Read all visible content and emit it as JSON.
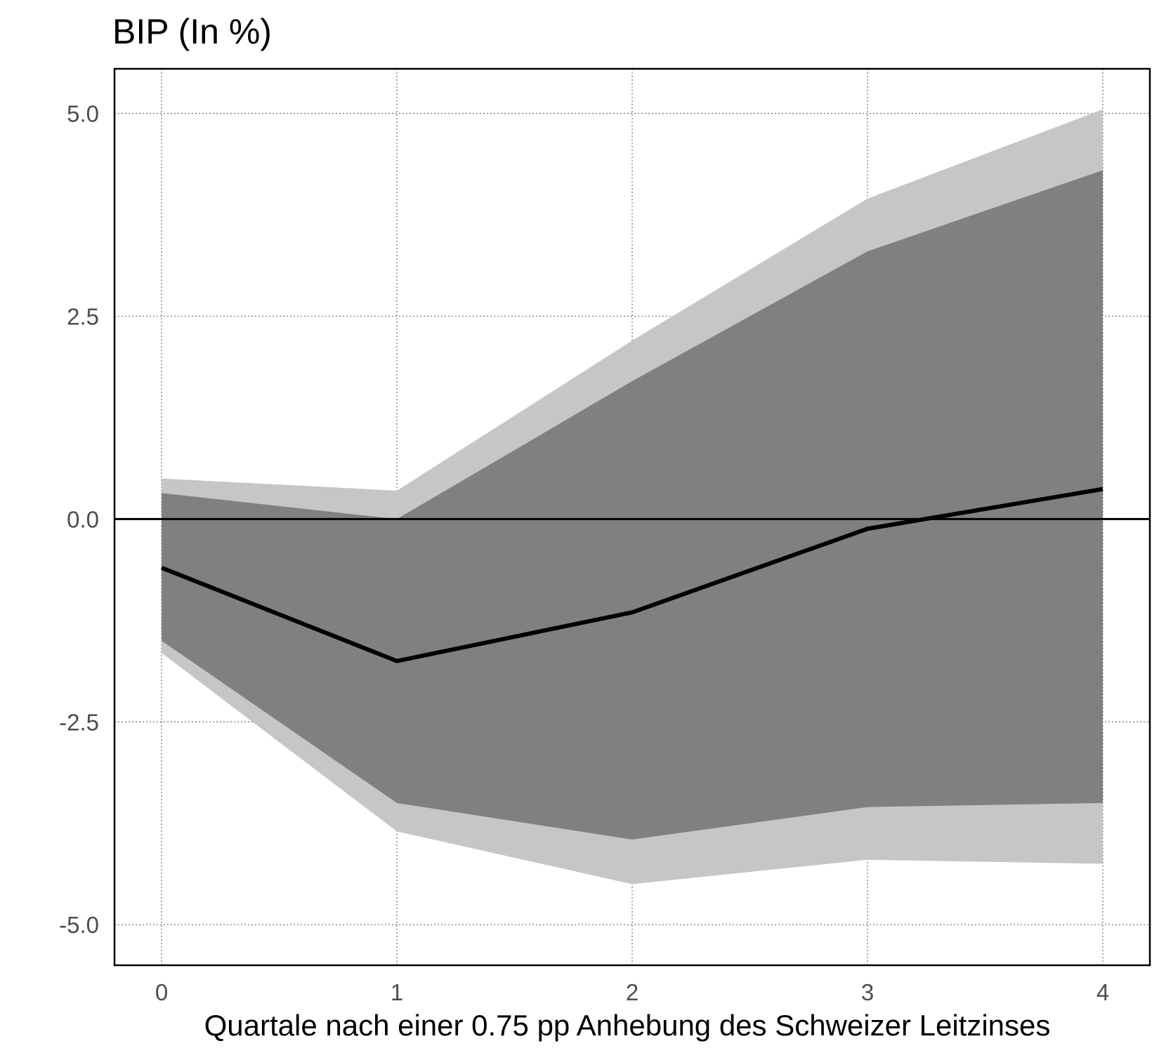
{
  "chart_data": {
    "type": "area",
    "title": "BIP (In %)",
    "xlabel": "Quartale nach einer 0.75 pp Anhebung des Schweizer Leitzinses",
    "ylabel": "",
    "x": [
      0,
      1,
      2,
      3,
      4
    ],
    "xlim": [
      -0.2,
      4.2
    ],
    "ylim": [
      -5.5,
      5.55
    ],
    "yticks": [
      5.0,
      2.5,
      0.0,
      -2.5,
      -5.0
    ],
    "ytick_labels": [
      "5.0",
      "2.5",
      "0.0",
      "-2.5",
      "-5.0"
    ],
    "xticks": [
      0,
      1,
      2,
      3,
      4
    ],
    "xtick_labels": [
      "0",
      "1",
      "2",
      "3",
      "4"
    ],
    "grid": true,
    "zero_line": 0,
    "series": [
      {
        "role": "outer-band",
        "color": "#c6c6c6",
        "upper": [
          0.5,
          0.35,
          2.2,
          3.95,
          5.05
        ],
        "lower": [
          -1.65,
          -3.85,
          -4.5,
          -4.2,
          -4.25
        ]
      },
      {
        "role": "inner-band",
        "color": "#808080",
        "upper": [
          0.32,
          0.0,
          1.7,
          3.3,
          4.3
        ],
        "lower": [
          -1.5,
          -3.5,
          -3.95,
          -3.55,
          -3.5
        ]
      },
      {
        "role": "line",
        "color": "#000000",
        "values": [
          -0.6,
          -1.75,
          -1.15,
          -0.12,
          0.37
        ]
      }
    ]
  }
}
